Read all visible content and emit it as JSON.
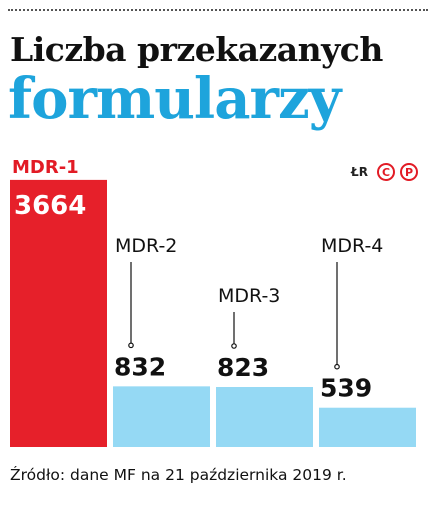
{
  "header": {
    "title_line1": "Liczba przekazanych",
    "title_line2": "formularzy"
  },
  "credits": {
    "initials": "ŁR",
    "logo_letters": [
      "C",
      "P"
    ]
  },
  "colors": {
    "highlight_bar": "#e6202a",
    "bar": "#95d9f4",
    "title_accent": "#1ea4dc",
    "highlight_label": "#e21b25"
  },
  "chart_data": {
    "type": "bar",
    "categories": [
      "MDR-1",
      "MDR-2",
      "MDR-3",
      "MDR-4"
    ],
    "values": [
      3664,
      832,
      823,
      539
    ],
    "highlight_index": 0,
    "title": "Liczba przekazanych formularzy",
    "xlabel": "",
    "ylabel": "",
    "grid": false,
    "legend": "none"
  },
  "source": "Źródło: dane MF na 21 października 2019 r."
}
